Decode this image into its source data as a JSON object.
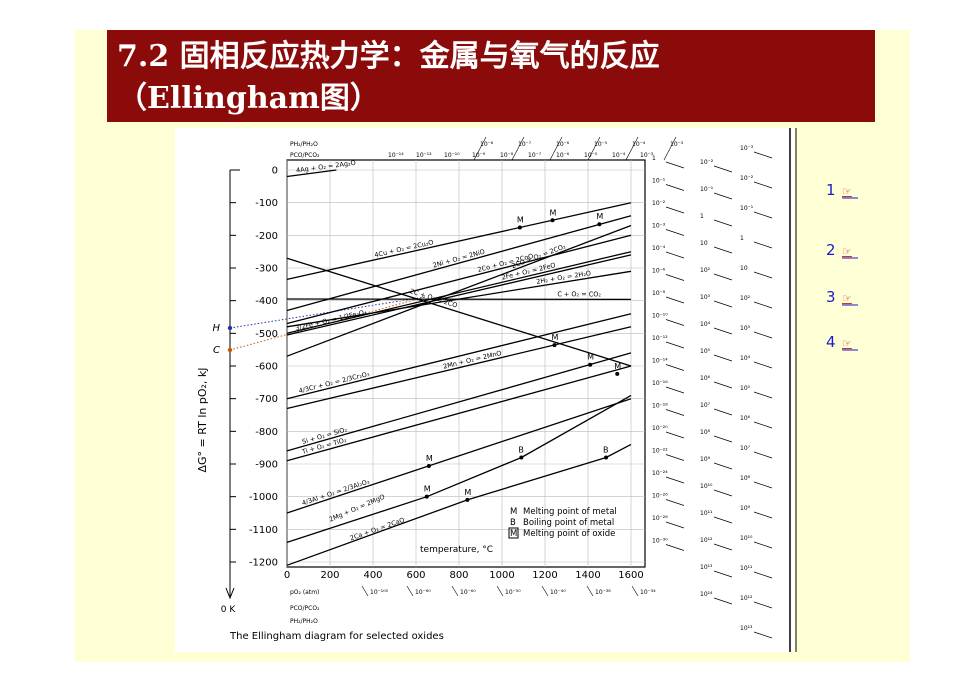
{
  "slide": {
    "title_line1": "7.2 固相反应热力学：金属与氧气的反应",
    "title_line2": "（Ellingham图）",
    "links": [
      {
        "label": "1",
        "icon": "☞"
      },
      {
        "label": "2",
        "icon": "☞"
      },
      {
        "label": "3",
        "icon": "☞"
      },
      {
        "label": "4",
        "icon": "☞"
      }
    ]
  },
  "chart_data": {
    "type": "line",
    "caption": "The Ellingham diagram for selected oxides",
    "y_label": "ΔG° = RT ln pO₂, kJ",
    "x_label": "temperature, °C",
    "origin_label": "0 K",
    "h_label": "H",
    "c_label": "C",
    "xlim": [
      0,
      1600
    ],
    "ylim": [
      -1200,
      0
    ],
    "xticks": [
      0,
      200,
      400,
      600,
      800,
      1000,
      1200,
      1400,
      1600
    ],
    "yticks": [
      0,
      -100,
      -200,
      -300,
      -400,
      -500,
      -600,
      -700,
      -800,
      -900,
      -1000,
      -1100,
      -1200
    ],
    "series": [
      {
        "name": "4Ag + O₂ = 2Ag₂O",
        "color": "#000000",
        "x": [
          0,
          230
        ],
        "values": [
          -20,
          0
        ]
      },
      {
        "name": "4Cu + O₂ = 2Cu₂O",
        "color": "#000000",
        "x": [
          0,
          1600
        ],
        "values": [
          -335,
          -100
        ]
      },
      {
        "name": "2Ni + O₂ = 2NiO",
        "color": "#000000",
        "x": [
          0,
          1600
        ],
        "values": [
          -430,
          -140
        ]
      },
      {
        "name": "2Co + O₂ = 2CoO",
        "color": "#000000",
        "x": [
          0,
          1600
        ],
        "values": [
          -470,
          -200
        ]
      },
      {
        "name": "2CO + O₂ = 2CO₂",
        "color": "#000000",
        "x": [
          0,
          1600
        ],
        "values": [
          -570,
          -170
        ]
      },
      {
        "name": "2H₂ + O₂ = 2H₂O",
        "color": "#000000",
        "x": [
          0,
          1600
        ],
        "values": [
          -480,
          -310
        ]
      },
      {
        "name": "2Fe + O₂ = 2FeO",
        "color": "#000000",
        "x": [
          0,
          1600
        ],
        "values": [
          -500,
          -250
        ]
      },
      {
        "name": "C + O₂ = CO₂",
        "color": "#000000",
        "x": [
          0,
          1600
        ],
        "values": [
          -395,
          -396
        ]
      },
      {
        "name": "2C + O₂ = 2CO",
        "color": "#000000",
        "x": [
          0,
          1600
        ],
        "values": [
          -270,
          -600
        ]
      },
      {
        "name": "3/2Fe + O₂ = 1/2Fe₃O₄",
        "color": "#000000",
        "x": [
          0,
          1600
        ],
        "values": [
          -505,
          -260
        ]
      },
      {
        "name": "4/3Cr + O₂ = 2/3Cr₂O₃",
        "color": "#000000",
        "x": [
          0,
          1600
        ],
        "values": [
          -700,
          -440
        ]
      },
      {
        "name": "2Mn + O₂ = 2MnO",
        "color": "#000000",
        "x": [
          0,
          1600
        ],
        "values": [
          -730,
          -480
        ]
      },
      {
        "name": "Si + O₂ = SiO₂",
        "color": "#000000",
        "x": [
          0,
          1600
        ],
        "values": [
          -860,
          -560
        ]
      },
      {
        "name": "Ti + O₂ = TiO₂",
        "color": "#000000",
        "x": [
          0,
          1600
        ],
        "values": [
          -890,
          -600
        ]
      },
      {
        "name": "4/3Al + O₂ = 2/3Al₂O₃",
        "color": "#000000",
        "x": [
          0,
          1600
        ],
        "values": [
          -1050,
          -700
        ]
      },
      {
        "name": "2Mg + O₂ = 2MgO",
        "color": "#000000",
        "x": [
          0,
          650,
          1090,
          1600
        ],
        "values": [
          -1140,
          -1000,
          -880,
          -690
        ]
      },
      {
        "name": "2Ca + O₂ = 2CaO",
        "color": "#000000",
        "x": [
          0,
          839,
          1484,
          1600
        ],
        "values": [
          -1210,
          -1010,
          -880,
          -840
        ]
      }
    ],
    "points": [
      {
        "label": "M",
        "x": 1083,
        "value": -176
      },
      {
        "label": "M",
        "x": 1235,
        "value": -154
      },
      {
        "label": "M",
        "x": 1453,
        "value": -166
      },
      {
        "label": "M",
        "x": 1244,
        "value": -536
      },
      {
        "label": "M",
        "x": 1410,
        "value": -596
      },
      {
        "label": "M",
        "x": 1536,
        "value": -624
      },
      {
        "label": "M",
        "x": 660,
        "value": -906
      },
      {
        "label": "M",
        "x": 650,
        "value": -1000
      },
      {
        "label": "B",
        "x": 1090,
        "value": -880
      },
      {
        "label": "M",
        "x": 839,
        "value": -1010
      },
      {
        "label": "B",
        "x": 1484,
        "value": -880
      }
    ],
    "legend": [
      {
        "symbol": "M",
        "text": "Melting point of metal"
      },
      {
        "symbol": "B",
        "text": "Boiling point of metal"
      },
      {
        "symbol": "M",
        "text": "Melting point of oxide"
      }
    ],
    "scale_h2_title": "PH₂/PH₂O",
    "scale_co_title": "PCO/PCO₂",
    "scale_o2_title": "pO₂ (atm)",
    "top_h2": [
      "10⁻⁸",
      "10⁻⁷",
      "10⁻⁶",
      "10⁻⁵",
      "10⁻⁴",
      "10⁻³"
    ],
    "top_co": [
      "10⁻¹⁴",
      "10⁻¹²",
      "10⁻¹⁰",
      "10⁻⁹",
      "10⁻⁸",
      "10⁻⁷",
      "10⁻⁶",
      "10⁻⁵",
      "10⁻⁴",
      "10⁻³"
    ],
    "right_o2": [
      "1",
      "10⁻¹",
      "10⁻²",
      "10⁻³",
      "10⁻⁴",
      "10⁻⁶",
      "10⁻⁸",
      "10⁻¹⁰",
      "10⁻¹²",
      "10⁻¹⁴",
      "10⁻¹⁶",
      "10⁻¹⁸",
      "10⁻²⁰",
      "10⁻²²",
      "10⁻²⁴",
      "10⁻²⁶",
      "10⁻²⁸",
      "10⁻³⁰"
    ],
    "right_co": [
      "10⁻²",
      "10⁻¹",
      "1",
      "10",
      "10²",
      "10³",
      "10⁴",
      "10⁵",
      "10⁶",
      "10⁷",
      "10⁸",
      "10⁹",
      "10¹⁰",
      "10¹¹",
      "10¹²",
      "10¹³",
      "10¹⁴"
    ],
    "right_h2": [
      "10⁻³",
      "10⁻²",
      "10⁻¹",
      "1",
      "10",
      "10²",
      "10³",
      "10⁴",
      "10⁵",
      "10⁶",
      "10⁷",
      "10⁸",
      "10⁹",
      "10¹⁰",
      "10¹¹",
      "10¹²",
      "10¹³"
    ],
    "bottom_o2": [
      "10⁻¹⁰⁰",
      "10⁻⁸⁰",
      "10⁻⁶⁰",
      "10⁻⁵⁰",
      "10⁻⁴⁰",
      "10⁻³⁸",
      "10⁻³⁴"
    ]
  }
}
